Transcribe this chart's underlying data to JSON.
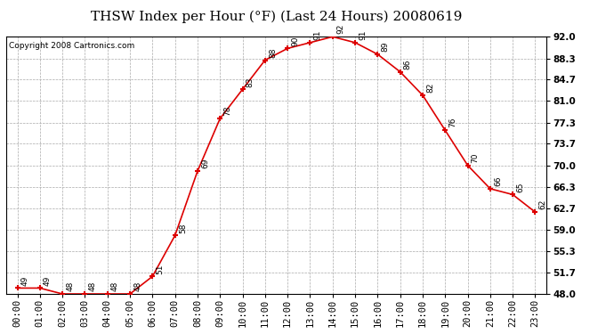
{
  "title": "THSW Index per Hour (°F) (Last 24 Hours) 20080619",
  "copyright": "Copyright 2008 Cartronics.com",
  "hours": [
    "00:00",
    "01:00",
    "02:00",
    "03:00",
    "04:00",
    "05:00",
    "06:00",
    "07:00",
    "08:00",
    "09:00",
    "10:00",
    "11:00",
    "12:00",
    "13:00",
    "14:00",
    "15:00",
    "16:00",
    "17:00",
    "18:00",
    "19:00",
    "20:00",
    "21:00",
    "22:00",
    "23:00"
  ],
  "values": [
    49,
    49,
    48,
    48,
    48,
    48,
    51,
    58,
    69,
    78,
    83,
    88,
    90,
    91,
    92,
    91,
    89,
    86,
    82,
    76,
    70,
    66,
    65,
    62
  ],
  "ylim_min": 48.0,
  "ylim_max": 92.0,
  "yticks": [
    48.0,
    51.7,
    55.3,
    59.0,
    62.7,
    66.3,
    70.0,
    73.7,
    77.3,
    81.0,
    84.7,
    88.3,
    92.0
  ],
  "line_color": "#dd0000",
  "marker_color": "#dd0000",
  "bg_color": "#ffffff",
  "grid_color": "#aaaaaa",
  "title_fontsize": 11,
  "copyright_fontsize": 6.5,
  "tick_fontsize": 7.5,
  "annot_fontsize": 6.5
}
